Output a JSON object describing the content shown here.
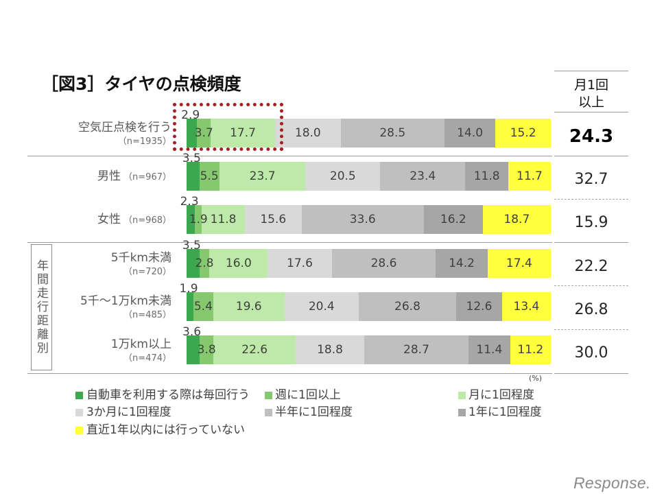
{
  "chart_data": {
    "type": "bar",
    "orientation": "horizontal",
    "stacked": true,
    "title": "［図3］タイヤの点検頻度",
    "categories": [
      "空気圧点検を行う",
      "男性",
      "女性",
      "5千km未満",
      "5千～1万km未満",
      "1万km以上"
    ],
    "category_sample_sizes": [
      "（n=1935）",
      "（n=967）",
      "（n=968）",
      "（n=720）",
      "（n=485）",
      "（n=474）"
    ],
    "group_label": "年間走行距離別",
    "series": [
      {
        "name": "自動車を利用する際は毎回行う",
        "color": "#3ba84f",
        "values": [
          2.9,
          3.5,
          2.3,
          3.5,
          1.9,
          3.6
        ]
      },
      {
        "name": "週に1回以上",
        "color": "#86c86e",
        "values": [
          3.7,
          5.5,
          1.9,
          2.8,
          5.4,
          3.8
        ]
      },
      {
        "name": "月に1回程度",
        "color": "#bdeaa8",
        "values": [
          17.7,
          23.7,
          11.8,
          16.0,
          19.6,
          22.6
        ]
      },
      {
        "name": "3か月に1回程度",
        "color": "#d9d9d9",
        "values": [
          18.0,
          20.5,
          15.6,
          17.6,
          20.4,
          18.8
        ]
      },
      {
        "name": "半年に1回程度",
        "color": "#bfbfbf",
        "values": [
          28.5,
          23.4,
          33.6,
          28.6,
          26.8,
          28.7
        ]
      },
      {
        "name": "1年に1回程度",
        "color": "#a6a6a6",
        "values": [
          14.0,
          11.8,
          16.2,
          14.2,
          12.6,
          11.4
        ]
      },
      {
        "name": "直近1年以内には行っていない",
        "color": "#ffff3d",
        "values": [
          15.2,
          11.7,
          18.7,
          17.4,
          13.4,
          11.2
        ]
      }
    ],
    "summary_column": {
      "header": [
        "月1回",
        "以上"
      ],
      "values": [
        24.3,
        32.7,
        15.9,
        22.2,
        26.8,
        30.0
      ],
      "emphasized": [
        true,
        false,
        false,
        false,
        false,
        false
      ]
    },
    "unit": "(%)",
    "xlim": [
      0,
      100
    ],
    "legend": "bottom",
    "grid": false,
    "highlight": {
      "category_index": 0,
      "series_indices": [
        0,
        1,
        2
      ],
      "color": "#a32024"
    }
  },
  "logo": "Response."
}
